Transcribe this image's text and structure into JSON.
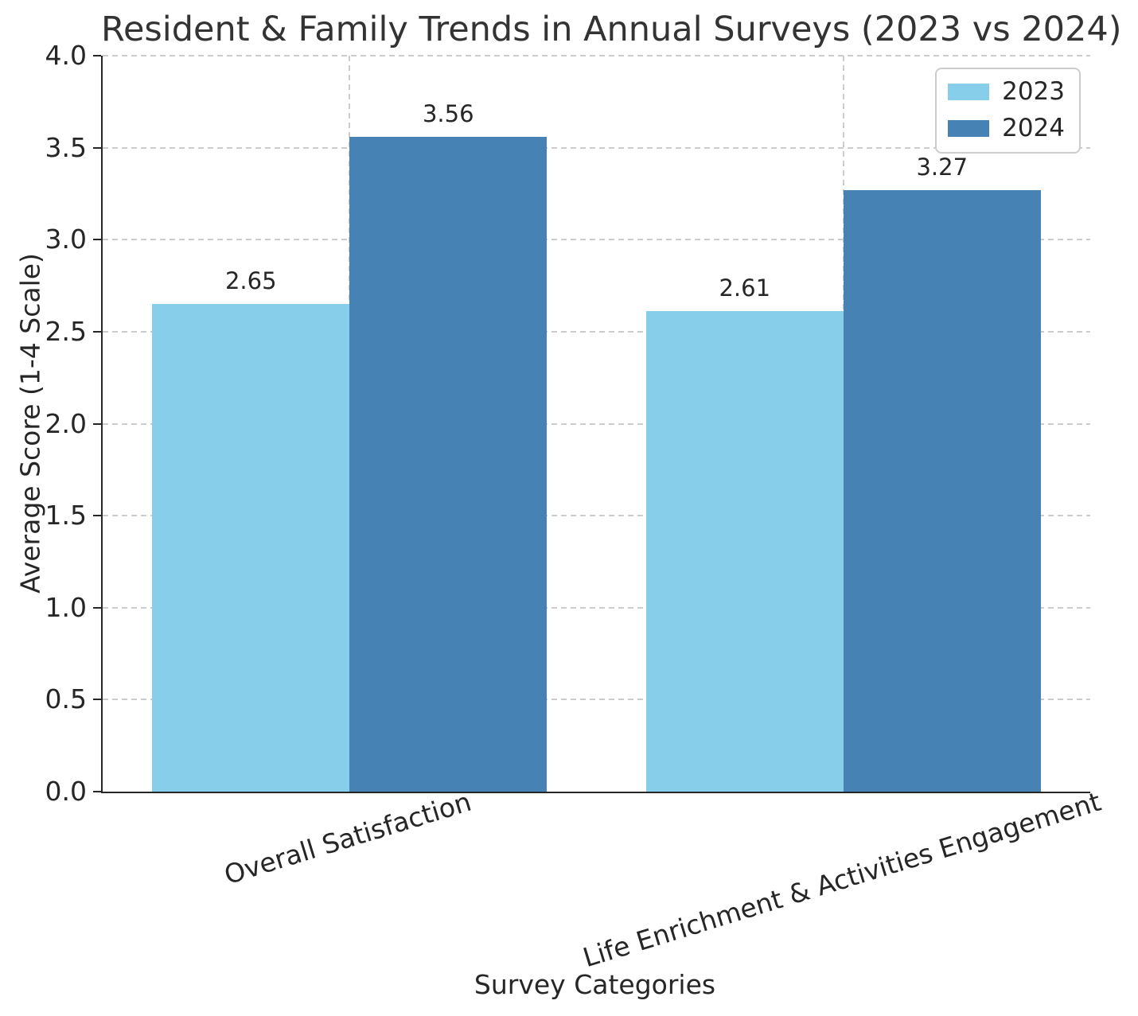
{
  "chart_data": {
    "type": "bar",
    "title": "Resident & Family Trends in Annual Surveys (2023 vs 2024)",
    "xlabel": "Survey Categories",
    "ylabel": "Average Score (1-4 Scale)",
    "categories": [
      "Overall Satisfaction",
      "Life Enrichment & Activities Engagement"
    ],
    "series": [
      {
        "name": "2023",
        "color": "#87CEEB",
        "values": [
          2.65,
          2.61
        ]
      },
      {
        "name": "2024",
        "color": "#4682B4",
        "values": [
          3.56,
          3.27
        ]
      }
    ],
    "bar_value_labels": [
      [
        "2.65",
        "2.61"
      ],
      [
        "3.56",
        "3.27"
      ]
    ],
    "ylim": [
      0.0,
      4.0
    ],
    "ytick_labels": [
      "0.0",
      "0.5",
      "1.0",
      "1.5",
      "2.0",
      "2.5",
      "3.0",
      "3.5",
      "4.0"
    ],
    "grid": true,
    "grid_style": "dashed",
    "grid_color": "#cccccc",
    "legend_position": "upper right",
    "axis_color": "#262626",
    "text_color": "#262626"
  }
}
